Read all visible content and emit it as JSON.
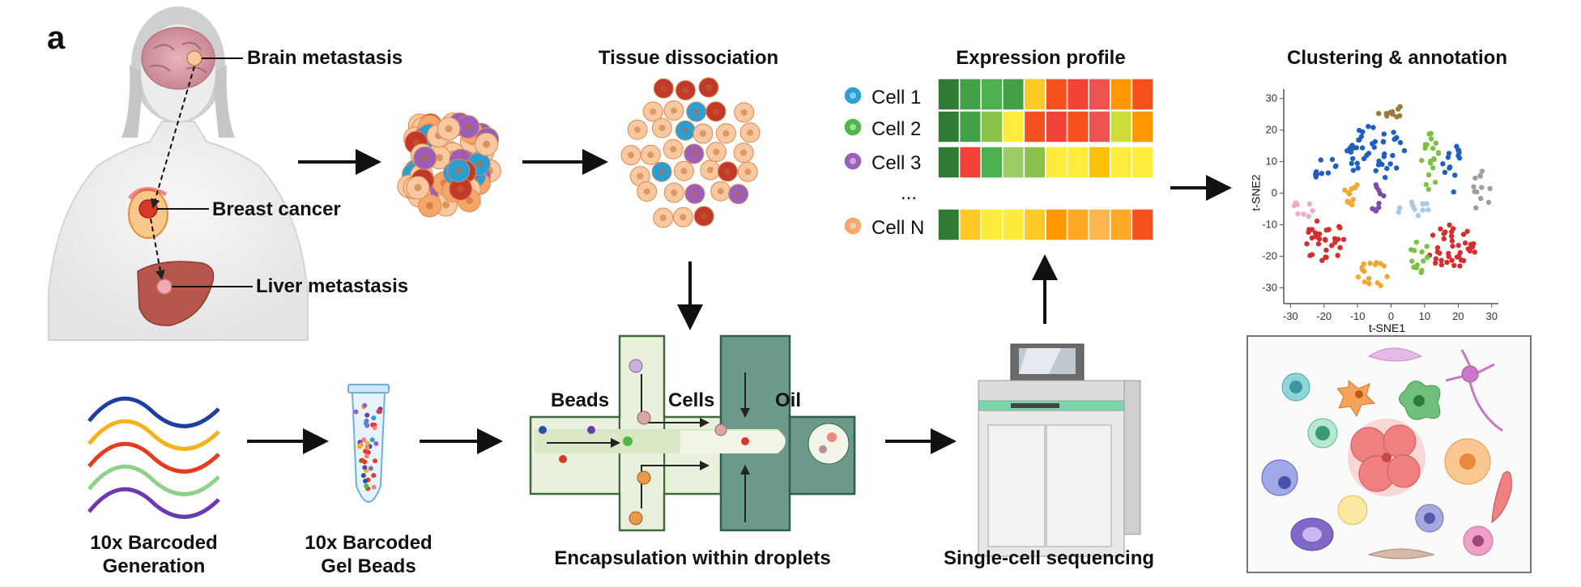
{
  "panel_letter": "a",
  "patient": {
    "brain_label": "Brain metastasis",
    "breast_label": "Breast cancer",
    "liver_label": "Liver metastasis"
  },
  "steps": {
    "tissue_dissociation": "Tissue dissociation",
    "expression_profile": "Expression profile",
    "clustering": "Clustering & annotation",
    "encapsulation": "Encapsulation within droplets",
    "sequencing": "Single-cell sequencing",
    "barcoded_generation": [
      "10x Barcoded",
      "Generation"
    ],
    "gel_beads": [
      "10x Barcoded",
      "Gel Beads"
    ]
  },
  "microfluidics": {
    "beads_label": "Beads",
    "cells_label": "Cells",
    "oil_label": "Oil"
  },
  "expression": {
    "rows": [
      {
        "label": "Cell 1",
        "dot_color": "#2a9fd6"
      },
      {
        "label": "Cell 2",
        "dot_color": "#4cb848"
      },
      {
        "label": "Cell 3",
        "dot_color": "#9a5fb8"
      },
      {
        "label": "Cell N",
        "dot_color": "#f5a66b"
      }
    ],
    "ellipsis": "...",
    "heatmap": [
      [
        "#2e7d32",
        "#43a047",
        "#4caf50",
        "#43a047",
        "#ffca28",
        "#f4511e",
        "#f44336",
        "#ef5350",
        "#ff9800",
        "#f4511e"
      ],
      [
        "#2e7d32",
        "#43a047",
        "#8bc34a",
        "#ffeb3b",
        "#f4511e",
        "#f44336",
        "#f4511e",
        "#ef5350",
        "#cddc39",
        "#ff9800"
      ],
      [
        "#2e7d32",
        "#f44336",
        "#4caf50",
        "#9ccc65",
        "#8bc34a",
        "#ffeb3b",
        "#ffeb3b",
        "#ffc107",
        "#ffeb3b",
        "#ffeb3b"
      ],
      [
        "#2e7d32",
        "#ffca28",
        "#ffeb3b",
        "#ffeb3b",
        "#ffca28",
        "#ff9800",
        "#ffa726",
        "#ffb74d",
        "#ffa726",
        "#f4511e"
      ]
    ]
  },
  "tsne": {
    "xlabel": "t-SNE1",
    "ylabel": "t-SNE2",
    "xticks": [
      "-30",
      "-20",
      "-10",
      "0",
      "10",
      "20",
      "30"
    ],
    "yticks": [
      "30",
      "20",
      "10",
      "0",
      "-10",
      "-20",
      "-30"
    ],
    "clusters": [
      {
        "color": "#1f5fbf",
        "cx": -5,
        "cy": 13,
        "rx": 9,
        "ry": 9,
        "n": 45
      },
      {
        "color": "#1f5fbf",
        "cx": -20,
        "cy": 8,
        "rx": 4,
        "ry": 4,
        "n": 10
      },
      {
        "color": "#1f5fbf",
        "cx": 18,
        "cy": 8,
        "rx": 3,
        "ry": 9,
        "n": 14
      },
      {
        "color": "#d32f2f",
        "cx": -20,
        "cy": -15,
        "rx": 6,
        "ry": 7,
        "n": 30
      },
      {
        "color": "#d32f2f",
        "cx": 18,
        "cy": -17,
        "rx": 8,
        "ry": 7,
        "n": 40
      },
      {
        "color": "#7cc242",
        "cx": 12,
        "cy": 9,
        "rx": 3,
        "ry": 10,
        "n": 20
      },
      {
        "color": "#7cc242",
        "cx": 8,
        "cy": -20,
        "rx": 4,
        "ry": 6,
        "n": 14
      },
      {
        "color": "#f0a830",
        "cx": -12,
        "cy": 0,
        "rx": 3,
        "ry": 4,
        "n": 12
      },
      {
        "color": "#f0a830",
        "cx": -5,
        "cy": -26,
        "rx": 5,
        "ry": 5,
        "n": 16
      },
      {
        "color": "#7b4ea8",
        "cx": -4,
        "cy": -2,
        "rx": 2,
        "ry": 6,
        "n": 10
      },
      {
        "color": "#9b7b3a",
        "cx": 0,
        "cy": 26,
        "rx": 5,
        "ry": 2,
        "n": 10
      },
      {
        "color": "#f3a9c8",
        "cx": -26,
        "cy": -4,
        "rx": 3,
        "ry": 4,
        "n": 8
      },
      {
        "color": "#a8c8e8",
        "cx": 7,
        "cy": -5,
        "rx": 5,
        "ry": 3,
        "n": 10
      },
      {
        "color": "#9e9e9e",
        "cx": 27,
        "cy": 0,
        "rx": 3,
        "ry": 8,
        "n": 12
      }
    ]
  }
}
